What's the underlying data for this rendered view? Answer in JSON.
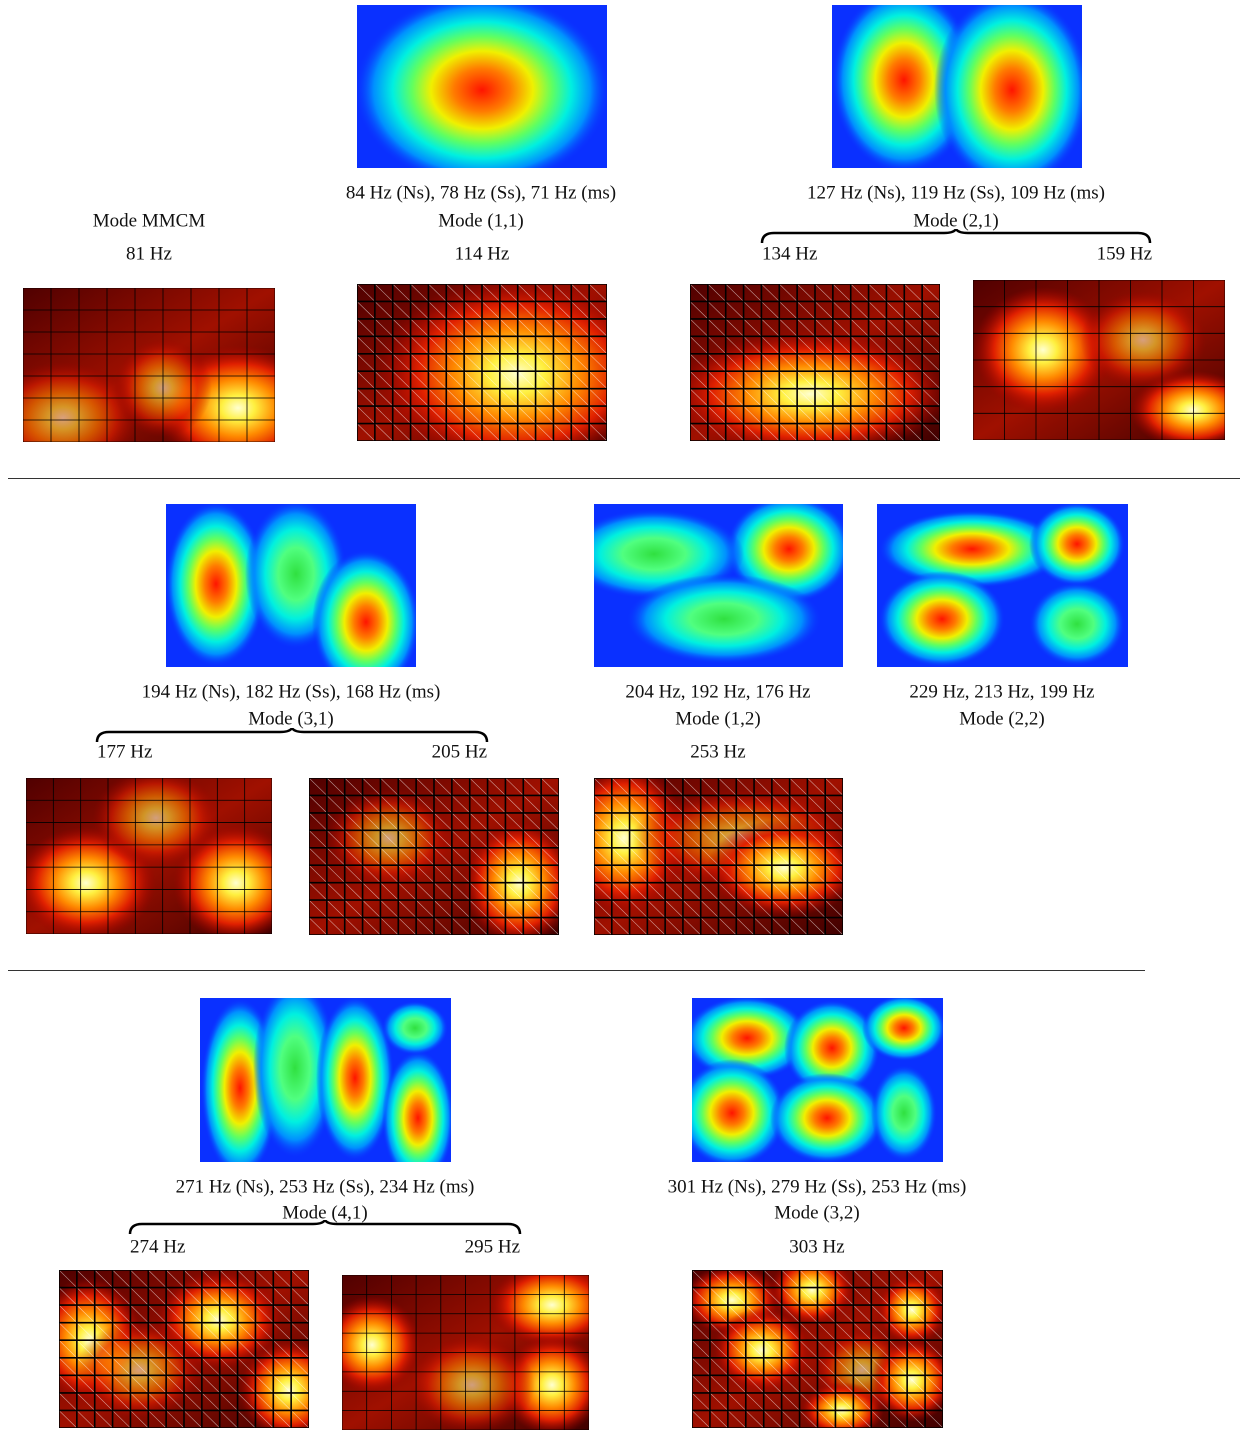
{
  "sections": [
    {
      "label": "Mode MMCM",
      "simulations": [
        {
          "frequencies": "84 Hz (Ns), 78 Hz (Ss), 71 Hz (ms)",
          "mode": "Mode (1,1)"
        },
        {
          "frequencies": "127 Hz (Ns), 119 Hz (Ss), 109 Hz (ms)",
          "mode": "Mode (2,1)"
        }
      ],
      "measurements": [
        "81 Hz",
        "114 Hz",
        "134 Hz",
        "159 Hz"
      ]
    },
    {
      "simulations": [
        {
          "frequencies": "194 Hz (Ns), 182 Hz (Ss), 168 Hz (ms)",
          "mode": "Mode (3,1)"
        },
        {
          "frequencies": "204 Hz, 192 Hz, 176 Hz",
          "mode": "Mode (1,2)"
        },
        {
          "frequencies": "229 Hz, 213 Hz, 199 Hz",
          "mode": "Mode (2,2)"
        }
      ],
      "measurements": [
        "177 Hz",
        "205 Hz",
        "253 Hz"
      ]
    },
    {
      "simulations": [
        {
          "frequencies": "271 Hz (Ns), 253 Hz (Ss), 234 Hz (ms)",
          "mode": "Mode (4,1)"
        },
        {
          "frequencies": "301 Hz (Ns), 279 Hz (Ss), 253 Hz (ms)",
          "mode": "Mode (3,2)"
        }
      ],
      "measurements": [
        "274 Hz",
        "295 Hz",
        "303 Hz"
      ]
    }
  ]
}
